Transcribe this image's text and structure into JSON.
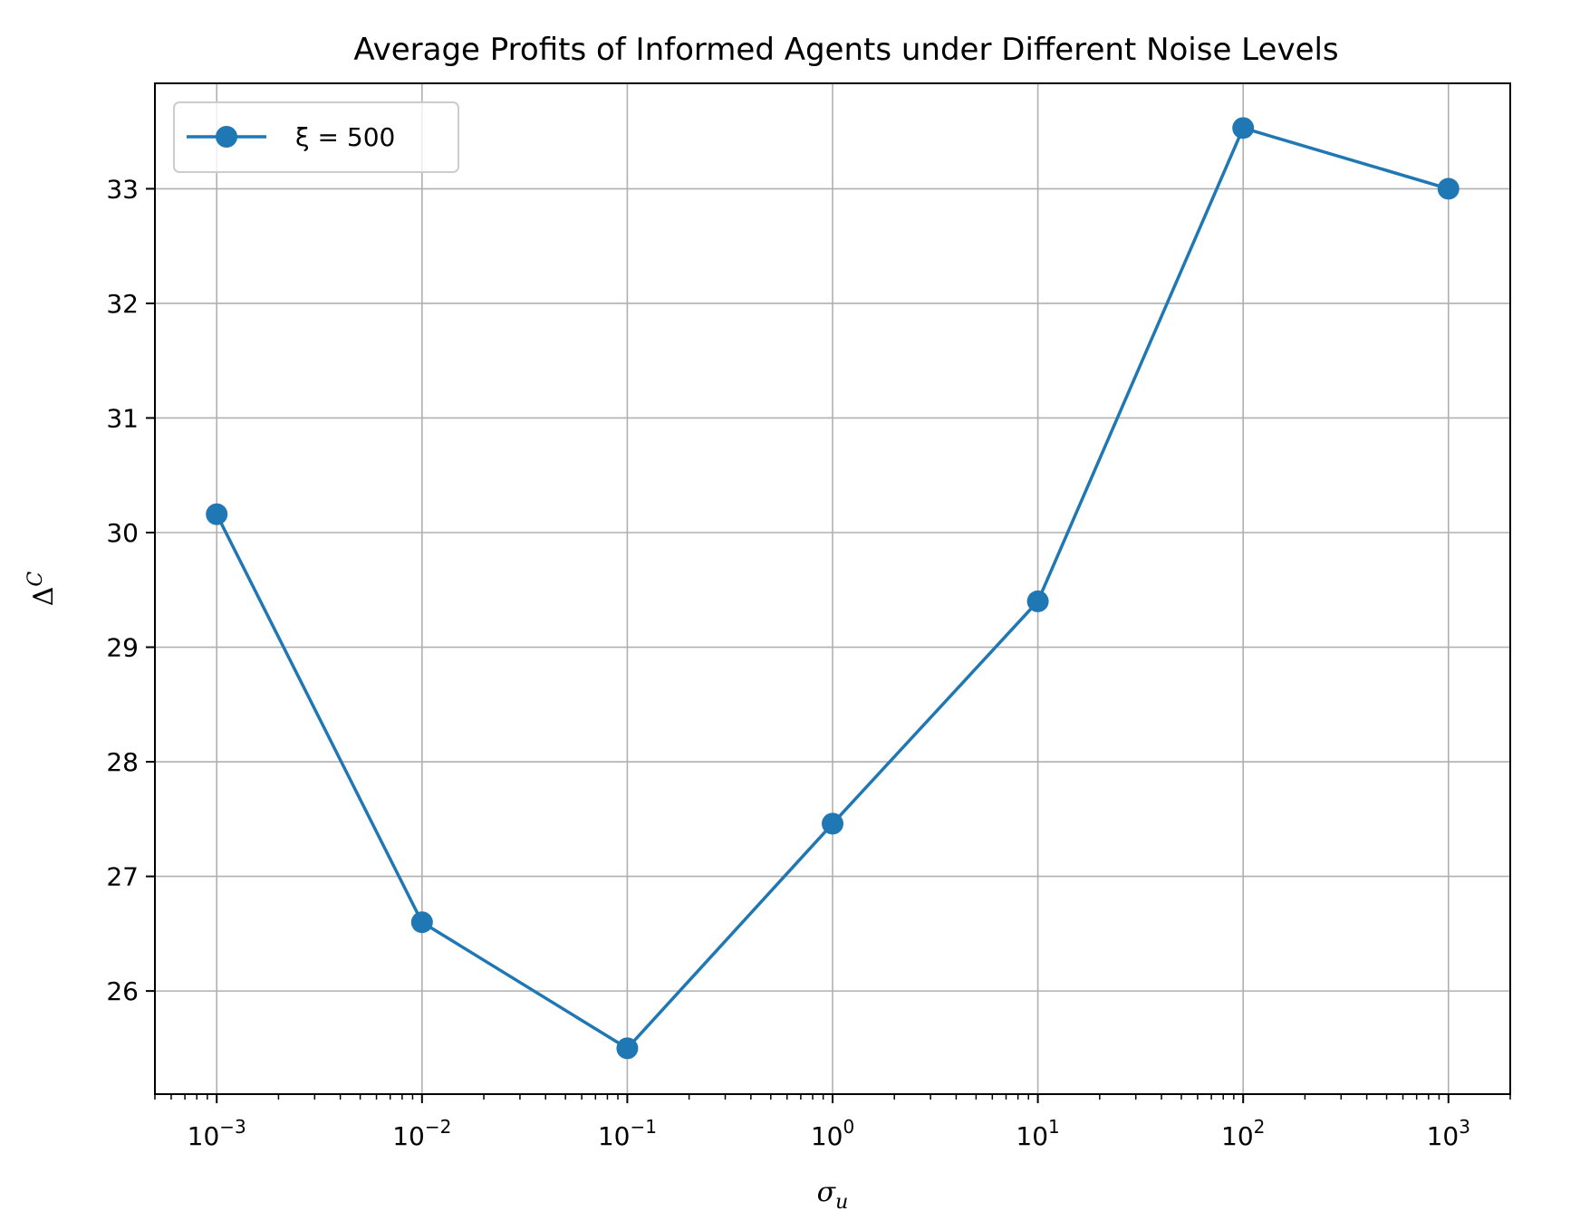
{
  "chart_data": {
    "type": "line",
    "title": "Average Profits of Informed Agents under Different Noise Levels",
    "xlabel": {
      "base": "σ",
      "sub": "u"
    },
    "ylabel": {
      "base": "Δ",
      "sup": "C"
    },
    "x_scale": "log",
    "xlim": [
      0.0005,
      2000
    ],
    "ylim": [
      25.1,
      33.92
    ],
    "grid": true,
    "legend_position": "upper-left",
    "x_ticks": [
      {
        "value": 0.001,
        "base": "10",
        "exp": "−3"
      },
      {
        "value": 0.01,
        "base": "10",
        "exp": "−2"
      },
      {
        "value": 0.1,
        "base": "10",
        "exp": "−1"
      },
      {
        "value": 1,
        "base": "10",
        "exp": "0"
      },
      {
        "value": 10,
        "base": "10",
        "exp": "1"
      },
      {
        "value": 100,
        "base": "10",
        "exp": "2"
      },
      {
        "value": 1000,
        "base": "10",
        "exp": "3"
      }
    ],
    "y_ticks": [
      26,
      27,
      28,
      29,
      30,
      31,
      32,
      33
    ],
    "series": [
      {
        "name": "ξ = 500",
        "color": "#1f77b4",
        "marker": "circle",
        "x": [
          0.001,
          0.01,
          0.1,
          1,
          10,
          100,
          1000
        ],
        "y": [
          30.16,
          26.6,
          25.5,
          27.46,
          29.4,
          33.53,
          33.0
        ]
      }
    ]
  }
}
